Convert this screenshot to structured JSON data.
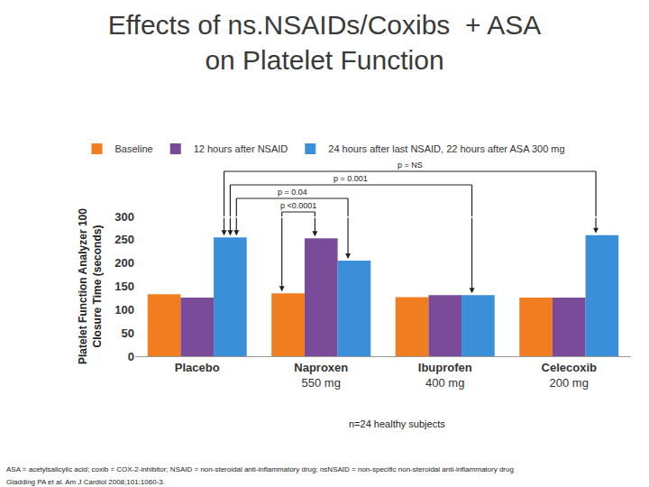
{
  "chart_data": {
    "type": "bar",
    "title": [
      "Effects of ns.NSAIDs/Coxibs  + ASA",
      "on Platelet Function"
    ],
    "y_label": [
      "Platelet Function Analyzer 100",
      "Closure Time (seconds)"
    ],
    "categories": [
      "Placebo",
      "Naproxen",
      "Ibuprofen",
      "Celecoxib"
    ],
    "category_doses": [
      null,
      "550 mg",
      "400 mg",
      "200 mg"
    ],
    "series": [
      {
        "name": "Baseline",
        "color": "#f07d1f",
        "values": [
          133,
          135,
          127,
          126
        ]
      },
      {
        "name": "12 hours after NSAID",
        "color": "#7a4b98",
        "values": [
          126,
          253,
          131,
          126
        ]
      },
      {
        "name": "24 hours after last NSAID, 22 hours after ASA 300 mg",
        "color": "#3b8fd9",
        "values": [
          255,
          205,
          131,
          260
        ]
      }
    ],
    "ylim": [
      0,
      300
    ],
    "yticks": [
      0,
      50,
      100,
      150,
      200,
      250,
      300
    ],
    "grid": false,
    "legend": "top",
    "comparisons": [
      {
        "label": "p = NS",
        "from": {
          "category": "Placebo",
          "series": "24 hours after last NSAID, 22 hours after ASA 300 mg"
        },
        "to": {
          "category": "Celecoxib",
          "series": "24 hours after last NSAID, 22 hours after ASA 300 mg"
        }
      },
      {
        "label": "p = 0.001",
        "from": {
          "category": "Placebo",
          "series": "24 hours after last NSAID, 22 hours after ASA 300 mg"
        },
        "to": {
          "category": "Ibuprofen",
          "series": "24 hours after last NSAID, 22 hours after ASA 300 mg"
        }
      },
      {
        "label": "p = 0.04",
        "from": {
          "category": "Placebo",
          "series": "24 hours after last NSAID, 22 hours after ASA 300 mg"
        },
        "to": {
          "category": "Naproxen",
          "series": "24 hours after last NSAID, 22 hours after ASA 300 mg"
        }
      },
      {
        "label": "p <0.0001",
        "from": {
          "category": "Naproxen",
          "series": "Baseline"
        },
        "to": {
          "category": "Naproxen",
          "series": "12 hours after NSAID"
        }
      }
    ],
    "note": "n=24 healthy subjects",
    "footnote": [
      "ASA = acetylsalicylic acid; coxib = COX-2-inhibitor; NSAID = non-steroidal anti-inflammatory drug; nsNSAID = non-specific non-steroidal anti-inflammatory drug",
      "Gladding PA et al. Am J Cardiol 2008;101:1060-3."
    ]
  }
}
